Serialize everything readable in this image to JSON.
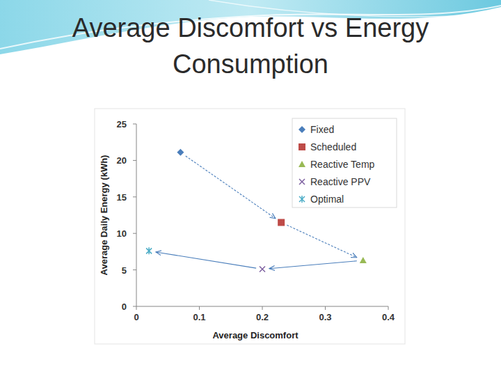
{
  "chart_data": {
    "type": "scatter",
    "title": "Average Discomfort vs Energy Consumption",
    "x_label": "Average Discomfort",
    "y_label": "Average Daily Energy (kWh)",
    "xlim": [
      0,
      0.4
    ],
    "xticks": [
      0,
      0.1,
      0.2,
      0.3,
      0.4
    ],
    "ylim": [
      0,
      25
    ],
    "yticks": [
      0,
      5,
      10,
      15,
      20,
      25
    ],
    "grid": false,
    "legend": "top right",
    "series": [
      {
        "name": "Fixed",
        "color": "#4a7ebb",
        "marker": "diamond",
        "x": [
          0.07
        ],
        "values": [
          21.1
        ]
      },
      {
        "name": "Scheduled",
        "color": "#be4b48",
        "marker": "square",
        "x": [
          0.23
        ],
        "values": [
          11.5
        ]
      },
      {
        "name": "Reactive Temp",
        "color": "#98b954",
        "marker": "triangle",
        "x": [
          0.36
        ],
        "values": [
          6.3
        ]
      },
      {
        "name": "Reactive PPV",
        "color": "#7d60a0",
        "marker": "x",
        "x": [
          0.2
        ],
        "values": [
          5.1
        ]
      },
      {
        "name": "Optimal",
        "color": "#4bacc6",
        "marker": "asterisk",
        "x": [
          0.02
        ],
        "values": [
          7.6
        ]
      }
    ]
  }
}
